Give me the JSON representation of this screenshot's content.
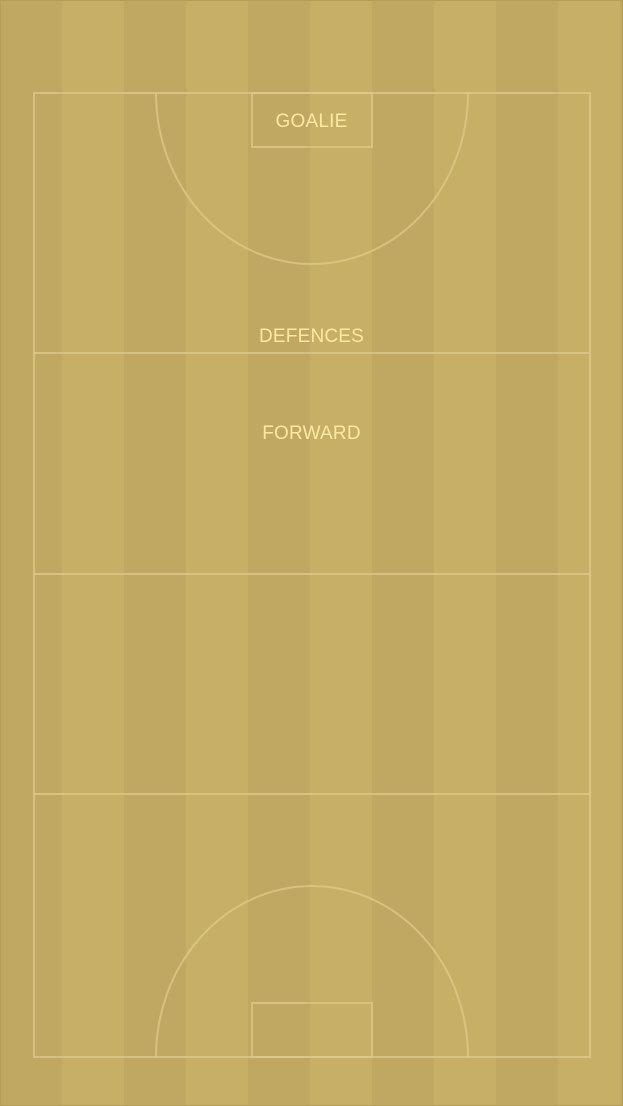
{
  "pitch": {
    "label_color": "#fbe8a3",
    "line_color": "#dcc98c",
    "stripe_colors": [
      "#c0a862",
      "#c7b066"
    ],
    "positions": {
      "goalie": "GOALIE",
      "defences": "DEFENCES",
      "forward": "FORWARD"
    }
  }
}
